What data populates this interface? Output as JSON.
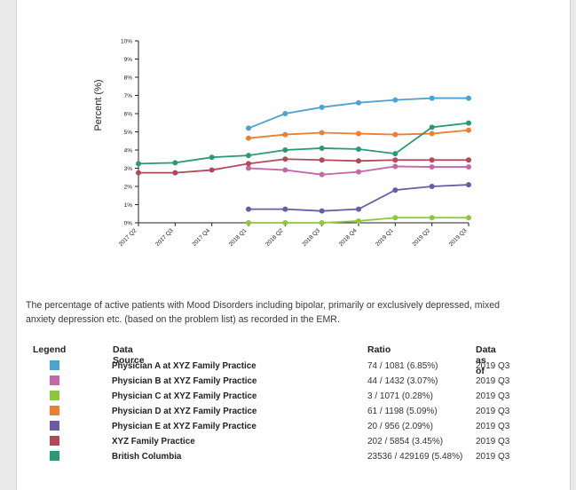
{
  "chart_data": {
    "type": "line",
    "ylabel": "Percent (%)",
    "xlabel": "",
    "ylim": [
      0,
      10
    ],
    "y_ticks": [
      "0%",
      "1%",
      "2%",
      "3%",
      "4%",
      "5%",
      "6%",
      "7%",
      "8%",
      "9%",
      "10%"
    ],
    "categories": [
      "2017 Q2",
      "2017 Q3",
      "2017 Q4",
      "2018 Q1",
      "2018 Q2",
      "2018 Q3",
      "2018 Q4",
      "2019 Q1",
      "2019 Q2",
      "2019 Q3"
    ],
    "grid": false,
    "series": [
      {
        "name": "Physician A at XYZ Family Practice",
        "color": "#4aa3d0",
        "values": [
          null,
          null,
          null,
          5.2,
          6.0,
          6.35,
          6.6,
          6.75,
          6.85,
          6.85
        ]
      },
      {
        "name": "Physician B at XYZ Family Practice",
        "color": "#c568a8",
        "values": [
          null,
          null,
          null,
          3.0,
          2.9,
          2.65,
          2.8,
          3.1,
          3.07,
          3.07
        ]
      },
      {
        "name": "Physician C at XYZ Family Practice",
        "color": "#8dc63f",
        "values": [
          null,
          null,
          null,
          0.0,
          0.0,
          0.0,
          0.1,
          0.28,
          0.28,
          0.28
        ]
      },
      {
        "name": "Physician D at XYZ Family Practice",
        "color": "#ec7f34",
        "values": [
          null,
          null,
          null,
          4.65,
          4.85,
          4.95,
          4.9,
          4.85,
          4.9,
          5.09
        ]
      },
      {
        "name": "Physician E at XYZ Family Practice",
        "color": "#6a5aa8",
        "values": [
          null,
          null,
          null,
          0.75,
          0.75,
          0.65,
          0.75,
          1.8,
          2.0,
          2.09
        ]
      },
      {
        "name": "XYZ Family Practice",
        "color": "#b5475b",
        "values": [
          2.75,
          2.75,
          2.9,
          3.25,
          3.5,
          3.45,
          3.4,
          3.45,
          3.45,
          3.45
        ]
      },
      {
        "name": "British Columbia",
        "color": "#2b9a72",
        "values": [
          3.25,
          3.3,
          3.6,
          3.7,
          4.0,
          4.1,
          4.05,
          3.8,
          5.25,
          5.48
        ]
      }
    ]
  },
  "description": "The percentage of active patients with Mood Disorders including bipolar, primarily or exclusively depressed, mixed anxiety depression etc. (based on the problem list) as recorded in the EMR.",
  "legend": {
    "headers": {
      "legend": "Legend",
      "source": "Data Source",
      "ratio": "Ratio",
      "asof": "Data as of"
    },
    "rows": [
      {
        "color": "#4aa3d0",
        "source": "Physician A at XYZ Family Practice",
        "ratio": "74 / 1081 (6.85%)",
        "asof": "2019 Q3"
      },
      {
        "color": "#c568a8",
        "source": "Physician B at XYZ Family Practice",
        "ratio": "44 / 1432 (3.07%)",
        "asof": "2019 Q3"
      },
      {
        "color": "#8dc63f",
        "source": "Physician C at XYZ Family Practice",
        "ratio": "3 / 1071 (0.28%)",
        "asof": "2019 Q3"
      },
      {
        "color": "#ec7f34",
        "source": "Physician D at XYZ Family Practice",
        "ratio": "61 / 1198 (5.09%)",
        "asof": "2019 Q3"
      },
      {
        "color": "#6a5aa8",
        "source": "Physician E at XYZ Family Practice",
        "ratio": "20 / 956 (2.09%)",
        "asof": "2019 Q3"
      },
      {
        "color": "#b5475b",
        "source": "XYZ Family Practice",
        "ratio": "202 / 5854 (3.45%)",
        "asof": "2019 Q3"
      },
      {
        "color": "#2b9a72",
        "source": "British Columbia",
        "ratio": "23536 / 429169 (5.48%)",
        "asof": "2019 Q3"
      }
    ]
  }
}
